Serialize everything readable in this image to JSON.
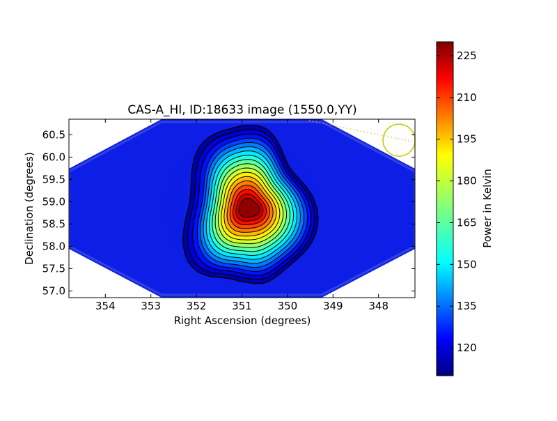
{
  "chart_data": {
    "type": "heatmap",
    "title": "CAS-A_HI, ID:18633 image (1550.0,YY)",
    "xlabel": "Right Ascension (degrees)",
    "ylabel": "Declination (degrees)",
    "xlim": [
      354.8,
      347.2
    ],
    "ylim": [
      56.85,
      60.85
    ],
    "x_axis_inverted": true,
    "x_ticks": [
      354,
      353,
      352,
      351,
      350,
      349,
      348
    ],
    "y_ticks": [
      57.0,
      57.5,
      58.0,
      58.5,
      59.0,
      59.5,
      60.0,
      60.5
    ],
    "colorbar": {
      "label": "Power in Kelvin",
      "colormap": "jet",
      "range": [
        110,
        230
      ],
      "ticks": [
        120,
        135,
        150,
        165,
        180,
        195,
        210,
        225
      ]
    },
    "source": {
      "ra": 350.85,
      "dec": 58.85,
      "peak": 228,
      "baseline": 111
    },
    "contours": {
      "count": 18,
      "color": "#000000"
    },
    "beam_marker": {
      "ra": 347.55,
      "dec": 60.38,
      "color": "#c8c800"
    },
    "grid": false,
    "colors": {
      "background": "#ffffff",
      "outside_region": "#ffffff",
      "beam": "#c8c800"
    }
  }
}
